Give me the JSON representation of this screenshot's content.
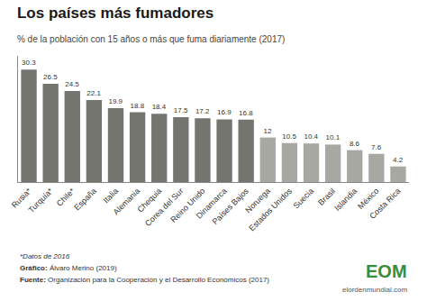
{
  "chart_data": {
    "type": "bar",
    "title": "Los países más fumadores",
    "subtitle": "% de la población con 15 años o más que fuma diariamente (2017)",
    "categories": [
      "Rusia*",
      "Turquía*",
      "Chile*",
      "España",
      "Italia",
      "Alemania",
      "Chequia",
      "Corea del Sur",
      "Reino Unido",
      "Dinamarca",
      "Países Bajos",
      "Noruega",
      "Estados Unidos",
      "Suecia",
      "Brasil",
      "Islandia",
      "México",
      "Costa Rica"
    ],
    "values": [
      30.3,
      26.5,
      24.5,
      22.1,
      19.9,
      18.8,
      18.4,
      17.5,
      17.2,
      16.9,
      16.8,
      12,
      10.5,
      10.4,
      10.1,
      8.6,
      7.6,
      4.2
    ],
    "colors": [
      "#757570",
      "#757570",
      "#757570",
      "#757570",
      "#757570",
      "#757570",
      "#757570",
      "#757570",
      "#757570",
      "#757570",
      "#757570",
      "#a8a8a3",
      "#a8a8a3",
      "#a8a8a3",
      "#a8a8a3",
      "#a8a8a3",
      "#a8a8a3",
      "#a8a8a3"
    ],
    "ylim": [
      0,
      34
    ],
    "data_labels": true,
    "tick_labels": "x",
    "grid": false,
    "annotations": [
      "*Datos de 2016",
      "Gráfico:",
      "Álvaro Merino (2019)",
      "Fuente:",
      "Organización para la Cooperación y el Desarrollo Económicos (2017)",
      "EOM",
      "elordenmundial.com"
    ]
  }
}
